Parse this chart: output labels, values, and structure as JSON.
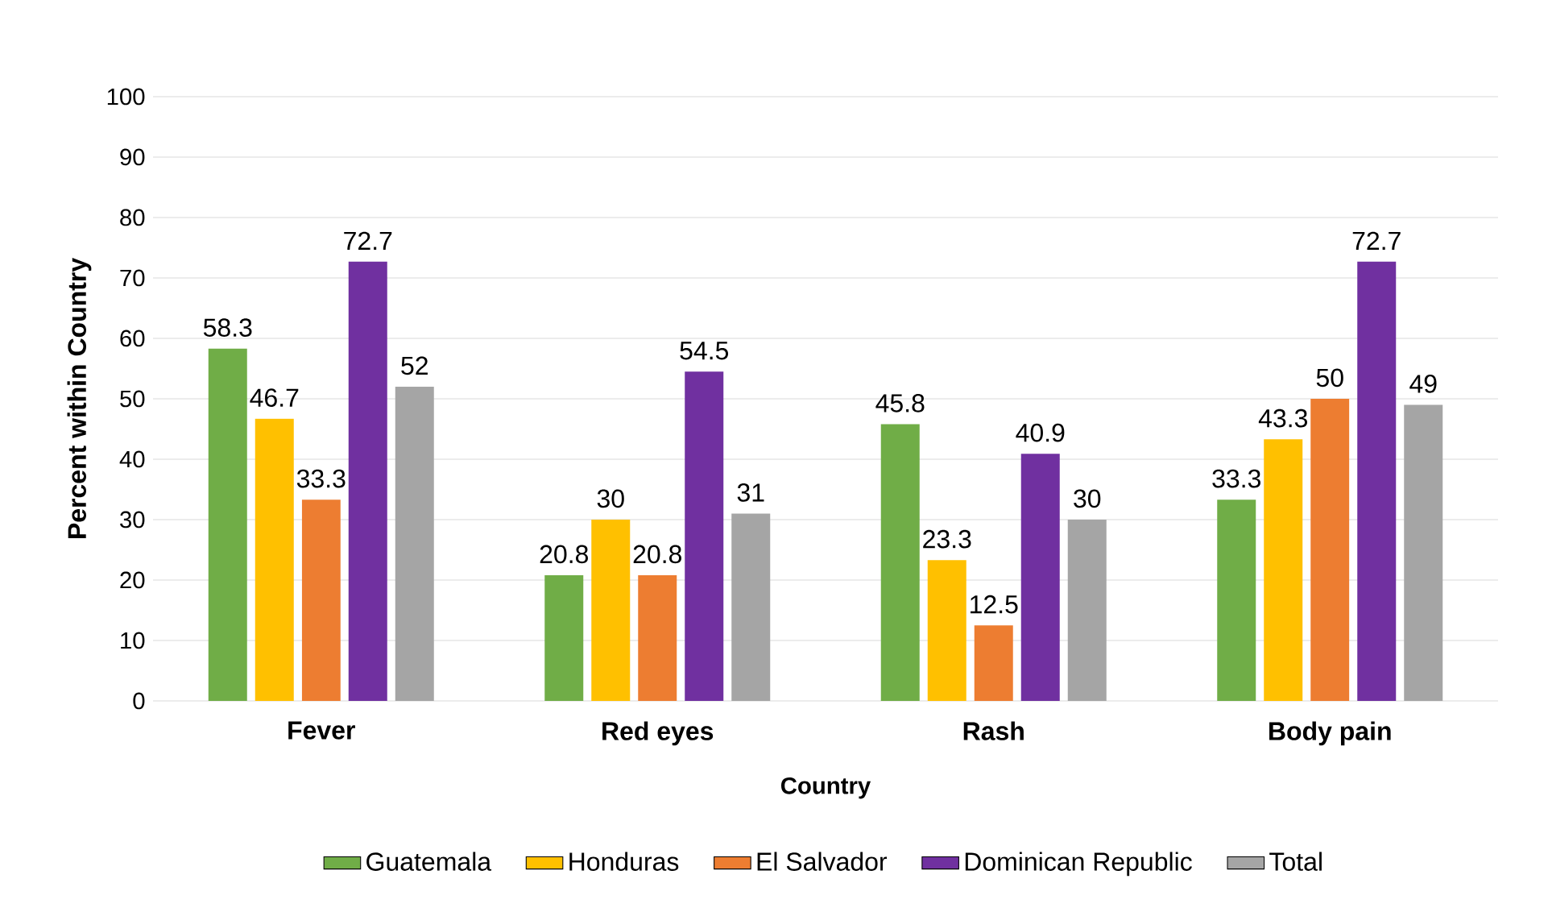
{
  "chart_data": {
    "type": "bar",
    "xlabel": "Country",
    "ylabel": "Percent within Country",
    "categories": [
      "Fever",
      "Red eyes",
      "Rash",
      "Body pain"
    ],
    "series": [
      {
        "name": "Guatemala",
        "color": "#70ad47",
        "values": [
          58.3,
          20.8,
          45.8,
          33.3
        ]
      },
      {
        "name": "Honduras",
        "color": "#ffc000",
        "values": [
          46.7,
          30,
          23.3,
          43.3
        ]
      },
      {
        "name": "El Salvador",
        "color": "#ed7d31",
        "values": [
          33.3,
          20.8,
          12.5,
          50
        ]
      },
      {
        "name": "Dominican Republic",
        "color": "#7030a0",
        "values": [
          72.7,
          54.5,
          40.9,
          72.7
        ]
      },
      {
        "name": "Total",
        "color": "#a5a5a5",
        "values": [
          52,
          31,
          30,
          49
        ]
      }
    ],
    "ylim": [
      0,
      100
    ],
    "yticks": [
      0,
      10,
      20,
      30,
      40,
      50,
      60,
      70,
      80,
      90,
      100
    ],
    "grid": "y",
    "legend": "bottom",
    "data_labels": true
  }
}
